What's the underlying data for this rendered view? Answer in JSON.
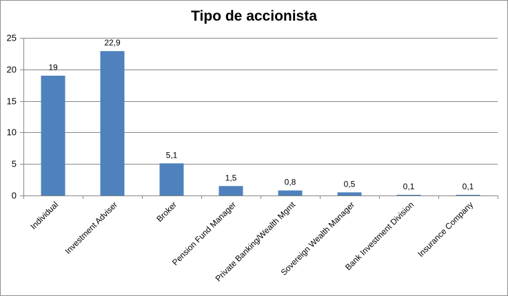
{
  "chart_data": {
    "type": "bar",
    "title": "Tipo de accionista",
    "categories": [
      "Individual",
      "Investment Adviser",
      "Broker",
      "Pension Fund Manager",
      "Private Banking/Wealth Mgmt",
      "Sovereign Wealth Manager",
      "Bank Investment Division",
      "Insurance Company"
    ],
    "values": [
      19,
      22.9,
      5.1,
      1.5,
      0.8,
      0.5,
      0.1,
      0.1
    ],
    "value_labels": [
      "19",
      "22,9",
      "5,1",
      "1,5",
      "0,8",
      "0,5",
      "0,1",
      "0,1"
    ],
    "yticks": [
      "0",
      "5",
      "10",
      "15",
      "20",
      "25"
    ],
    "ylim": [
      0,
      25
    ],
    "xlabel": "",
    "ylabel": "",
    "grid": true,
    "legend": "none",
    "colors": {
      "bar": "#4f81bd",
      "grid": "#868686",
      "axis": "#868686"
    }
  }
}
